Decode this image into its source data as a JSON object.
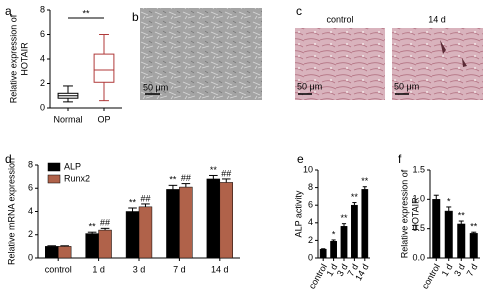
{
  "chart_data": [
    {
      "type": "box",
      "panel": "a",
      "ylabel": [
        "Relative expression of",
        "HOTAIR"
      ],
      "categories": [
        "Normal",
        "OP"
      ],
      "boxes": [
        {
          "min": 0.5,
          "q1": 0.8,
          "median": 1.0,
          "q3": 1.2,
          "max": 1.8,
          "color": "#000000"
        },
        {
          "min": 0.6,
          "q1": 2.1,
          "median": 3.1,
          "q3": 4.4,
          "max": 6.0,
          "color": "#b03a3a"
        }
      ],
      "significance": "**",
      "ylim": [
        0,
        8
      ],
      "yticks": [
        0,
        2,
        4,
        6,
        8
      ]
    },
    {
      "type": "bar",
      "panel": "d",
      "ylabel": [
        "Relative mRNA expression"
      ],
      "categories": [
        "control",
        "1 d",
        "3 d",
        "7 d",
        "14 d"
      ],
      "legend": "top-left",
      "series": [
        {
          "name": "ALP",
          "color": "#000000",
          "values": [
            1.0,
            2.1,
            4.0,
            5.9,
            6.8
          ],
          "errors": [
            0.05,
            0.12,
            0.3,
            0.35,
            0.3
          ],
          "annotations": [
            null,
            "**",
            "**",
            "**",
            "**"
          ]
        },
        {
          "name": "Runx2",
          "color": "#b0624a",
          "values": [
            1.0,
            2.4,
            4.4,
            6.1,
            6.5
          ],
          "errors": [
            0.05,
            0.15,
            0.25,
            0.3,
            0.3
          ],
          "annotations": [
            null,
            "##",
            "##",
            "##",
            "##"
          ]
        }
      ],
      "ylim": [
        0,
        8
      ],
      "yticks": [
        0,
        2,
        4,
        6,
        8
      ]
    },
    {
      "type": "bar",
      "panel": "e",
      "ylabel": [
        "ALP activity"
      ],
      "categories": [
        "control",
        "1 d",
        "3 d",
        "7 d",
        "14 d"
      ],
      "series": [
        {
          "color": "#000000",
          "values": [
            1.0,
            1.9,
            3.6,
            6.0,
            7.8
          ],
          "errors": [
            0.05,
            0.15,
            0.3,
            0.3,
            0.3
          ],
          "annotations": [
            null,
            "*",
            "**",
            "**",
            "**"
          ]
        }
      ],
      "ylim": [
        0,
        10
      ],
      "yticks": [
        0,
        2,
        4,
        6,
        8,
        10
      ]
    },
    {
      "type": "bar",
      "panel": "f",
      "ylabel": [
        "Relative expression of",
        "HOTAIR"
      ],
      "categories": [
        "control",
        "1 d",
        "3 d",
        "7 d"
      ],
      "series": [
        {
          "color": "#000000",
          "values": [
            1.0,
            0.8,
            0.58,
            0.42
          ],
          "errors": [
            0.07,
            0.07,
            0.05,
            0.02
          ],
          "annotations": [
            null,
            "*",
            "**",
            "**"
          ]
        }
      ],
      "ylim": [
        0,
        1.5
      ],
      "yticks": [
        {
          "value": 0,
          "label": "0.0"
        },
        {
          "value": 0.5,
          "label": "0.5"
        },
        {
          "value": 1.0,
          "label": "1.0"
        },
        {
          "value": 1.5,
          "label": "1.5"
        }
      ]
    }
  ],
  "image_panels": [
    {
      "panel": "b",
      "scale_bar": "50 μm"
    },
    {
      "panel": "c",
      "labels": [
        "control",
        "14 d"
      ],
      "scale_bar": "50 μm"
    }
  ]
}
